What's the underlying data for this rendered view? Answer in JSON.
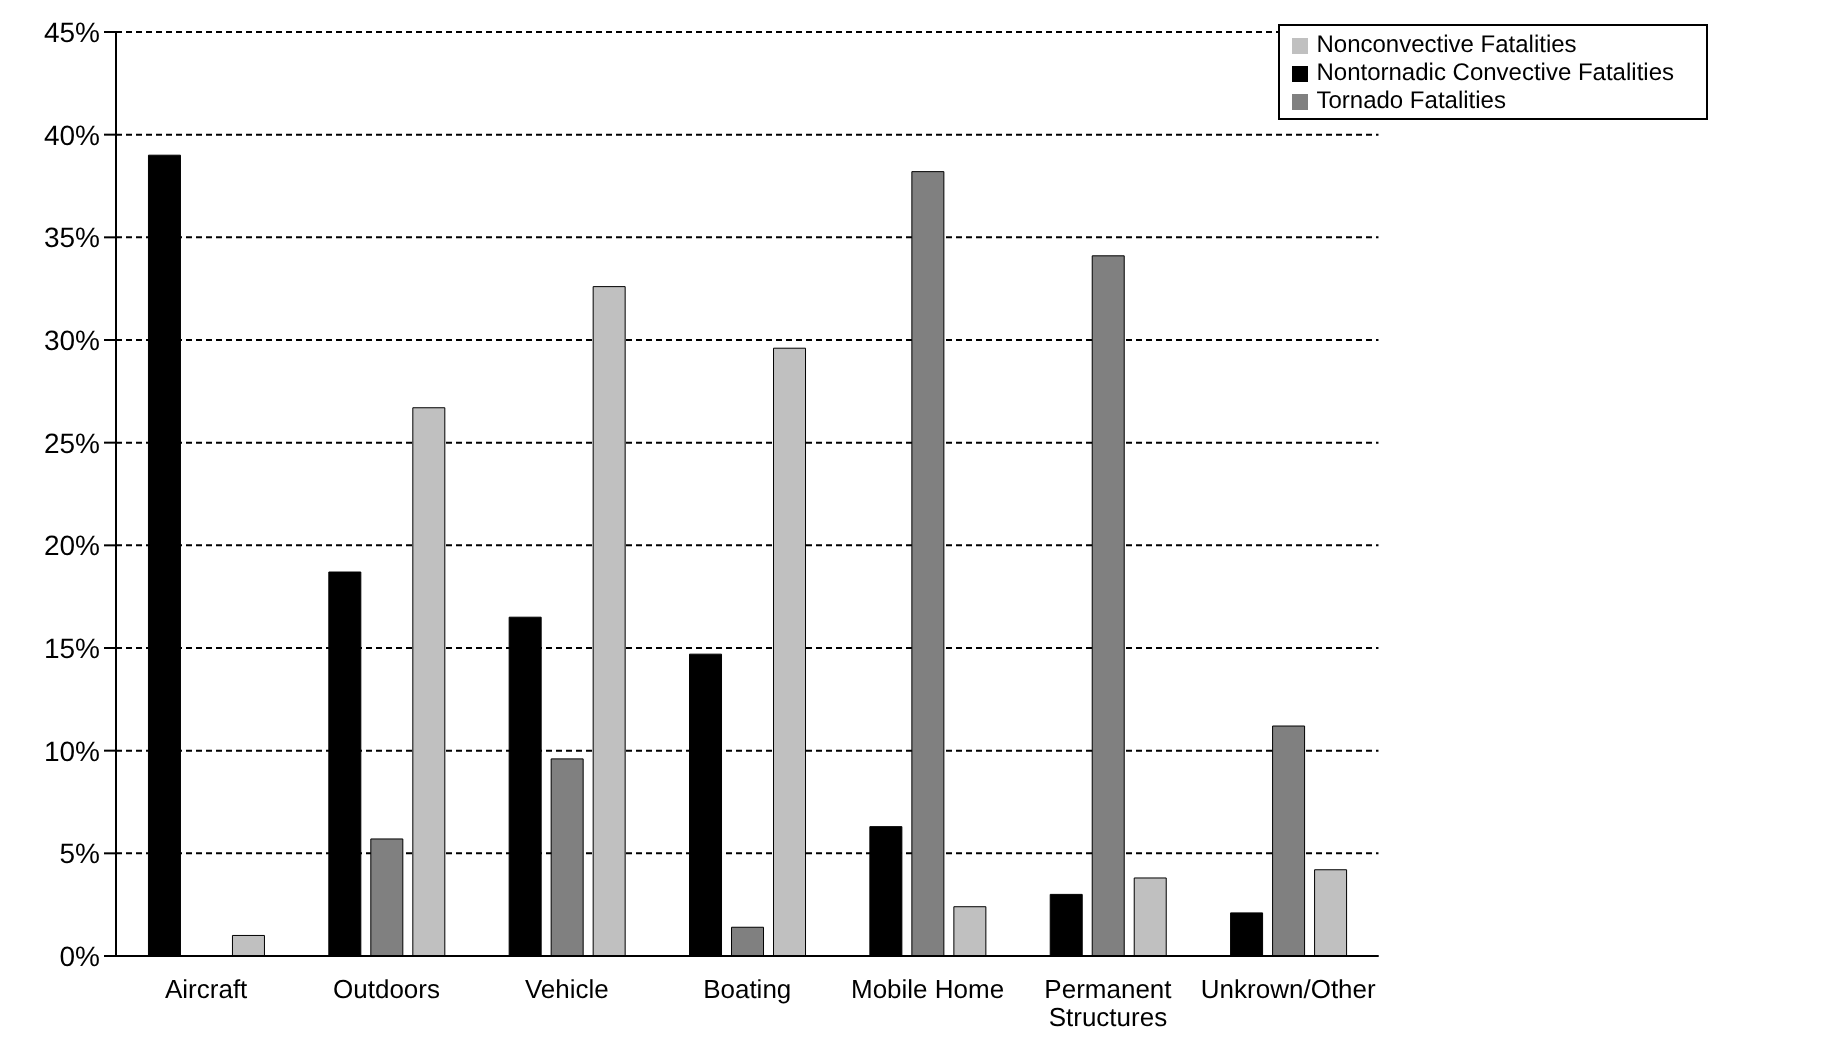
{
  "chart_data": {
    "type": "bar",
    "categories": [
      "Aircraft",
      "Outdoors",
      "Vehicle",
      "Boating",
      "Mobile Home",
      "Permanent Structures",
      "Unkrown/Other"
    ],
    "series": [
      {
        "name": "Nontornadic Convective Fatalities",
        "color": "#000000",
        "values": [
          39.0,
          18.7,
          16.5,
          14.7,
          6.3,
          3.0,
          2.1
        ]
      },
      {
        "name": "Tornado Fatalities",
        "color": "#808080",
        "values": [
          0,
          5.7,
          9.6,
          1.4,
          38.2,
          34.1,
          11.2
        ]
      },
      {
        "name": "Nonconvective Fatalities",
        "color": "#c0c0c0",
        "values": [
          1.0,
          26.7,
          32.6,
          29.6,
          2.4,
          3.8,
          4.2
        ]
      }
    ],
    "ylim": [
      0,
      45
    ],
    "yticks": [
      {
        "value": 0,
        "label": "0%"
      },
      {
        "value": 5,
        "label": "5%"
      },
      {
        "value": 10,
        "label": "10%"
      },
      {
        "value": 15,
        "label": "15%"
      },
      {
        "value": 20,
        "label": "20%"
      },
      {
        "value": 25,
        "label": "25%"
      },
      {
        "value": 30,
        "label": "30%"
      },
      {
        "value": 35,
        "label": "35%"
      },
      {
        "value": 40,
        "label": "40%"
      },
      {
        "value": 45,
        "label": "45%"
      }
    ],
    "grid": "y",
    "legend": "top right"
  }
}
